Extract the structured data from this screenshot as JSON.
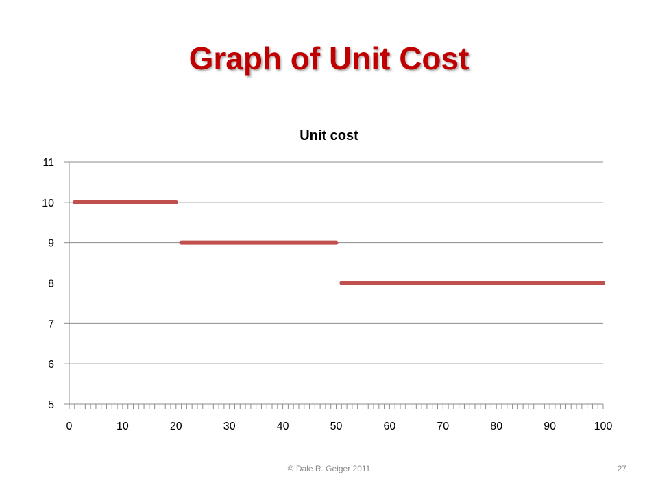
{
  "slide": {
    "title": "Graph of Unit Cost",
    "footer": "© Dale R. Geiger 2011",
    "page_number": "27"
  },
  "colors": {
    "title": "#c00000",
    "series": "#c0504d",
    "grid": "#8c8c8c",
    "text": "#000000"
  },
  "chart_data": {
    "type": "line",
    "title": "Unit cost",
    "xlabel": "",
    "ylabel": "",
    "xlim": [
      0,
      100
    ],
    "ylim": [
      5,
      11
    ],
    "x_ticks": [
      0,
      10,
      20,
      30,
      40,
      50,
      60,
      70,
      80,
      90,
      100
    ],
    "y_ticks": [
      5,
      6,
      7,
      8,
      9,
      10,
      11
    ],
    "grid": true,
    "legend": "none",
    "series": [
      {
        "segments": [
          {
            "x": [
              1,
              20
            ],
            "y": [
              10,
              10
            ]
          },
          {
            "x": [
              21,
              50
            ],
            "y": [
              9,
              9
            ]
          },
          {
            "x": [
              51,
              100
            ],
            "y": [
              8,
              8
            ]
          }
        ]
      }
    ]
  }
}
